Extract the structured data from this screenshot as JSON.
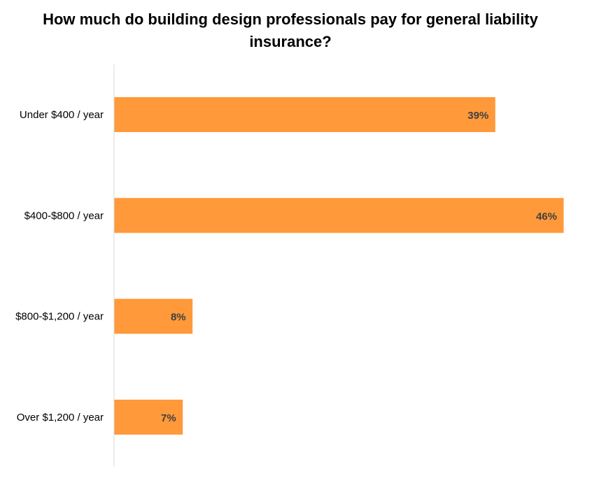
{
  "chart_data": {
    "type": "bar",
    "orientation": "horizontal",
    "title": "How much do building design professionals pay for general liability insurance?",
    "categories": [
      "Under $400 / year",
      "$400-$800 / year",
      "$800-$1,200 / year",
      "Over $1,200 / year"
    ],
    "values": [
      39,
      46,
      8,
      7
    ],
    "data_labels": [
      "39%",
      "46%",
      "8%",
      "7%"
    ],
    "unit": "%",
    "xlim": [
      0,
      50
    ],
    "grid": false,
    "colors": {
      "bar": "#FF993A",
      "label": "#404040",
      "axis": "#D9D9D9"
    }
  }
}
